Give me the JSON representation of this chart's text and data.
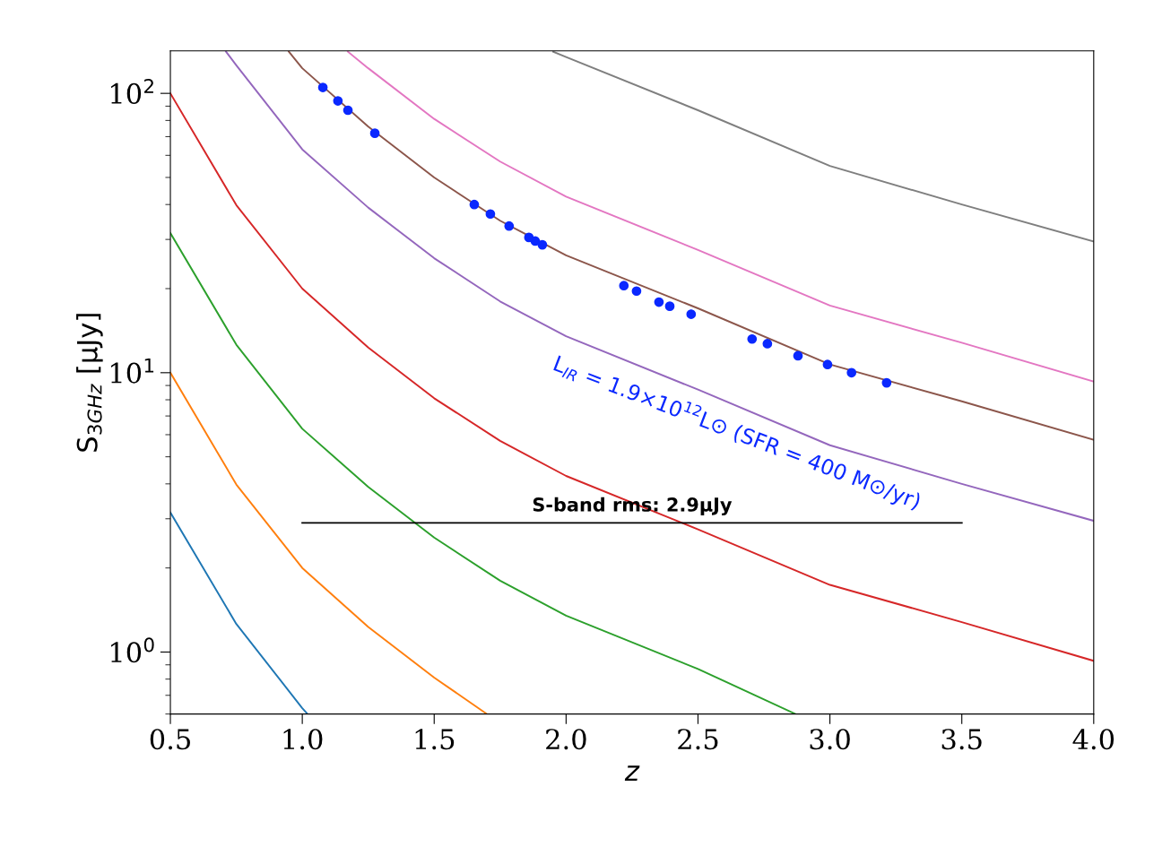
{
  "chart_data": {
    "type": "line",
    "xlabel": "z",
    "ylabel": "S$_{3GHz}$ [μJy]",
    "log": "y",
    "grid": false,
    "legend": false,
    "marker": "none",
    "line_style": "solid",
    "xlim": [
      0.5,
      4.0
    ],
    "xticks": [
      {
        "value": 0.5,
        "label": "0.5"
      },
      {
        "value": 1.0,
        "label": "1.0"
      },
      {
        "value": 1.5,
        "label": "1.5"
      },
      {
        "value": 2.0,
        "label": "2.0"
      },
      {
        "value": 2.5,
        "label": "2.5"
      },
      {
        "value": 3.0,
        "label": "3.0"
      },
      {
        "value": 3.5,
        "label": "3.5"
      },
      {
        "value": 4.0,
        "label": "4.0"
      }
    ],
    "ylim": [
      0.6,
      142
    ],
    "yticks": [
      {
        "value": 1,
        "label": "10$^{0}$"
      },
      {
        "value": 10,
        "label": "10$^{1}$"
      },
      {
        "value": 100,
        "label": "10$^{2}$"
      }
    ],
    "series": [
      {
        "color": "#1f77b4",
        "x": [
          0.5,
          0.75,
          1.0,
          1.02
        ],
        "values": [
          3.16,
          1.26,
          0.63,
          0.6
        ]
      },
      {
        "color": "#ff7f0e",
        "x": [
          0.5,
          0.75,
          1.0,
          1.25,
          1.5,
          1.7
        ],
        "values": [
          10,
          3.98,
          2.0,
          1.23,
          0.81,
          0.6
        ]
      },
      {
        "color": "#2ca02c",
        "x": [
          0.5,
          0.75,
          1.0,
          1.25,
          1.5,
          1.75,
          2.0,
          2.5,
          2.87
        ],
        "values": [
          31.6,
          12.6,
          6.3,
          3.9,
          2.57,
          1.8,
          1.35,
          0.87,
          0.6
        ]
      },
      {
        "color": "#d62728",
        "x": [
          0.5,
          0.75,
          1.0,
          1.25,
          1.5,
          1.75,
          2.0,
          2.5,
          3.0,
          3.5,
          4.0
        ],
        "values": [
          100,
          39.8,
          20.0,
          12.3,
          8.1,
          5.7,
          4.27,
          2.75,
          1.74,
          1.28,
          0.93
        ]
      },
      {
        "color": "#9467bd",
        "x": [
          0.711,
          0.75,
          1.0,
          1.25,
          1.5,
          1.75,
          2.0,
          2.5,
          3.0,
          3.5,
          4.0
        ],
        "values": [
          141,
          126,
          63,
          39,
          25.7,
          18,
          13.5,
          8.7,
          5.5,
          4.0,
          2.95
        ]
      },
      {
        "color": "#8c564b",
        "x": [
          0.949,
          1.0,
          1.25,
          1.5,
          1.75,
          2.0,
          2.5,
          3.0,
          3.5,
          4.0
        ],
        "values": [
          141,
          123,
          76,
          50,
          35,
          26.3,
          17,
          10.7,
          7.9,
          5.75
        ]
      },
      {
        "color": "#e377c2",
        "x": [
          1.173,
          1.25,
          1.5,
          1.75,
          2.0,
          2.5,
          3.0,
          3.5,
          4.0
        ],
        "values": [
          141,
          123,
          81,
          57,
          42.7,
          27.5,
          17.4,
          12.8,
          9.3
        ]
      },
      {
        "color": "#7f7f7f",
        "x": [
          1.951,
          2.0,
          2.5,
          3.0,
          3.5,
          4.0
        ],
        "values": [
          141,
          135,
          87,
          55,
          40,
          29.5
        ]
      },
      {
        "color": "#000000",
        "x": [
          1.0,
          3.5
        ],
        "values": [
          2.9,
          2.9
        ]
      },
      {
        "type": "scatter",
        "marker": "circle",
        "color": "#0a28ff",
        "name": "L$_{IR}$ = 1.9×10$^{12}$L⊙ (SFR = 400 M⊙/yr)",
        "x": [
          1.078,
          1.135,
          1.173,
          1.275,
          1.652,
          1.713,
          1.784,
          1.859,
          1.883,
          1.91,
          2.219,
          2.267,
          2.352,
          2.393,
          2.474,
          2.705,
          2.763,
          2.879,
          2.991,
          3.082,
          3.215
        ],
        "values": [
          105,
          94,
          87,
          72,
          40,
          37,
          33.5,
          30.5,
          29.6,
          28.7,
          20.5,
          19.6,
          17.9,
          17.3,
          16.2,
          13.2,
          12.7,
          11.5,
          10.7,
          10.0,
          9.2
        ]
      }
    ],
    "annotations": [
      {
        "text": "S-band rms: 2.9μJy",
        "x": 2.25,
        "y": 2.9
      }
    ]
  }
}
